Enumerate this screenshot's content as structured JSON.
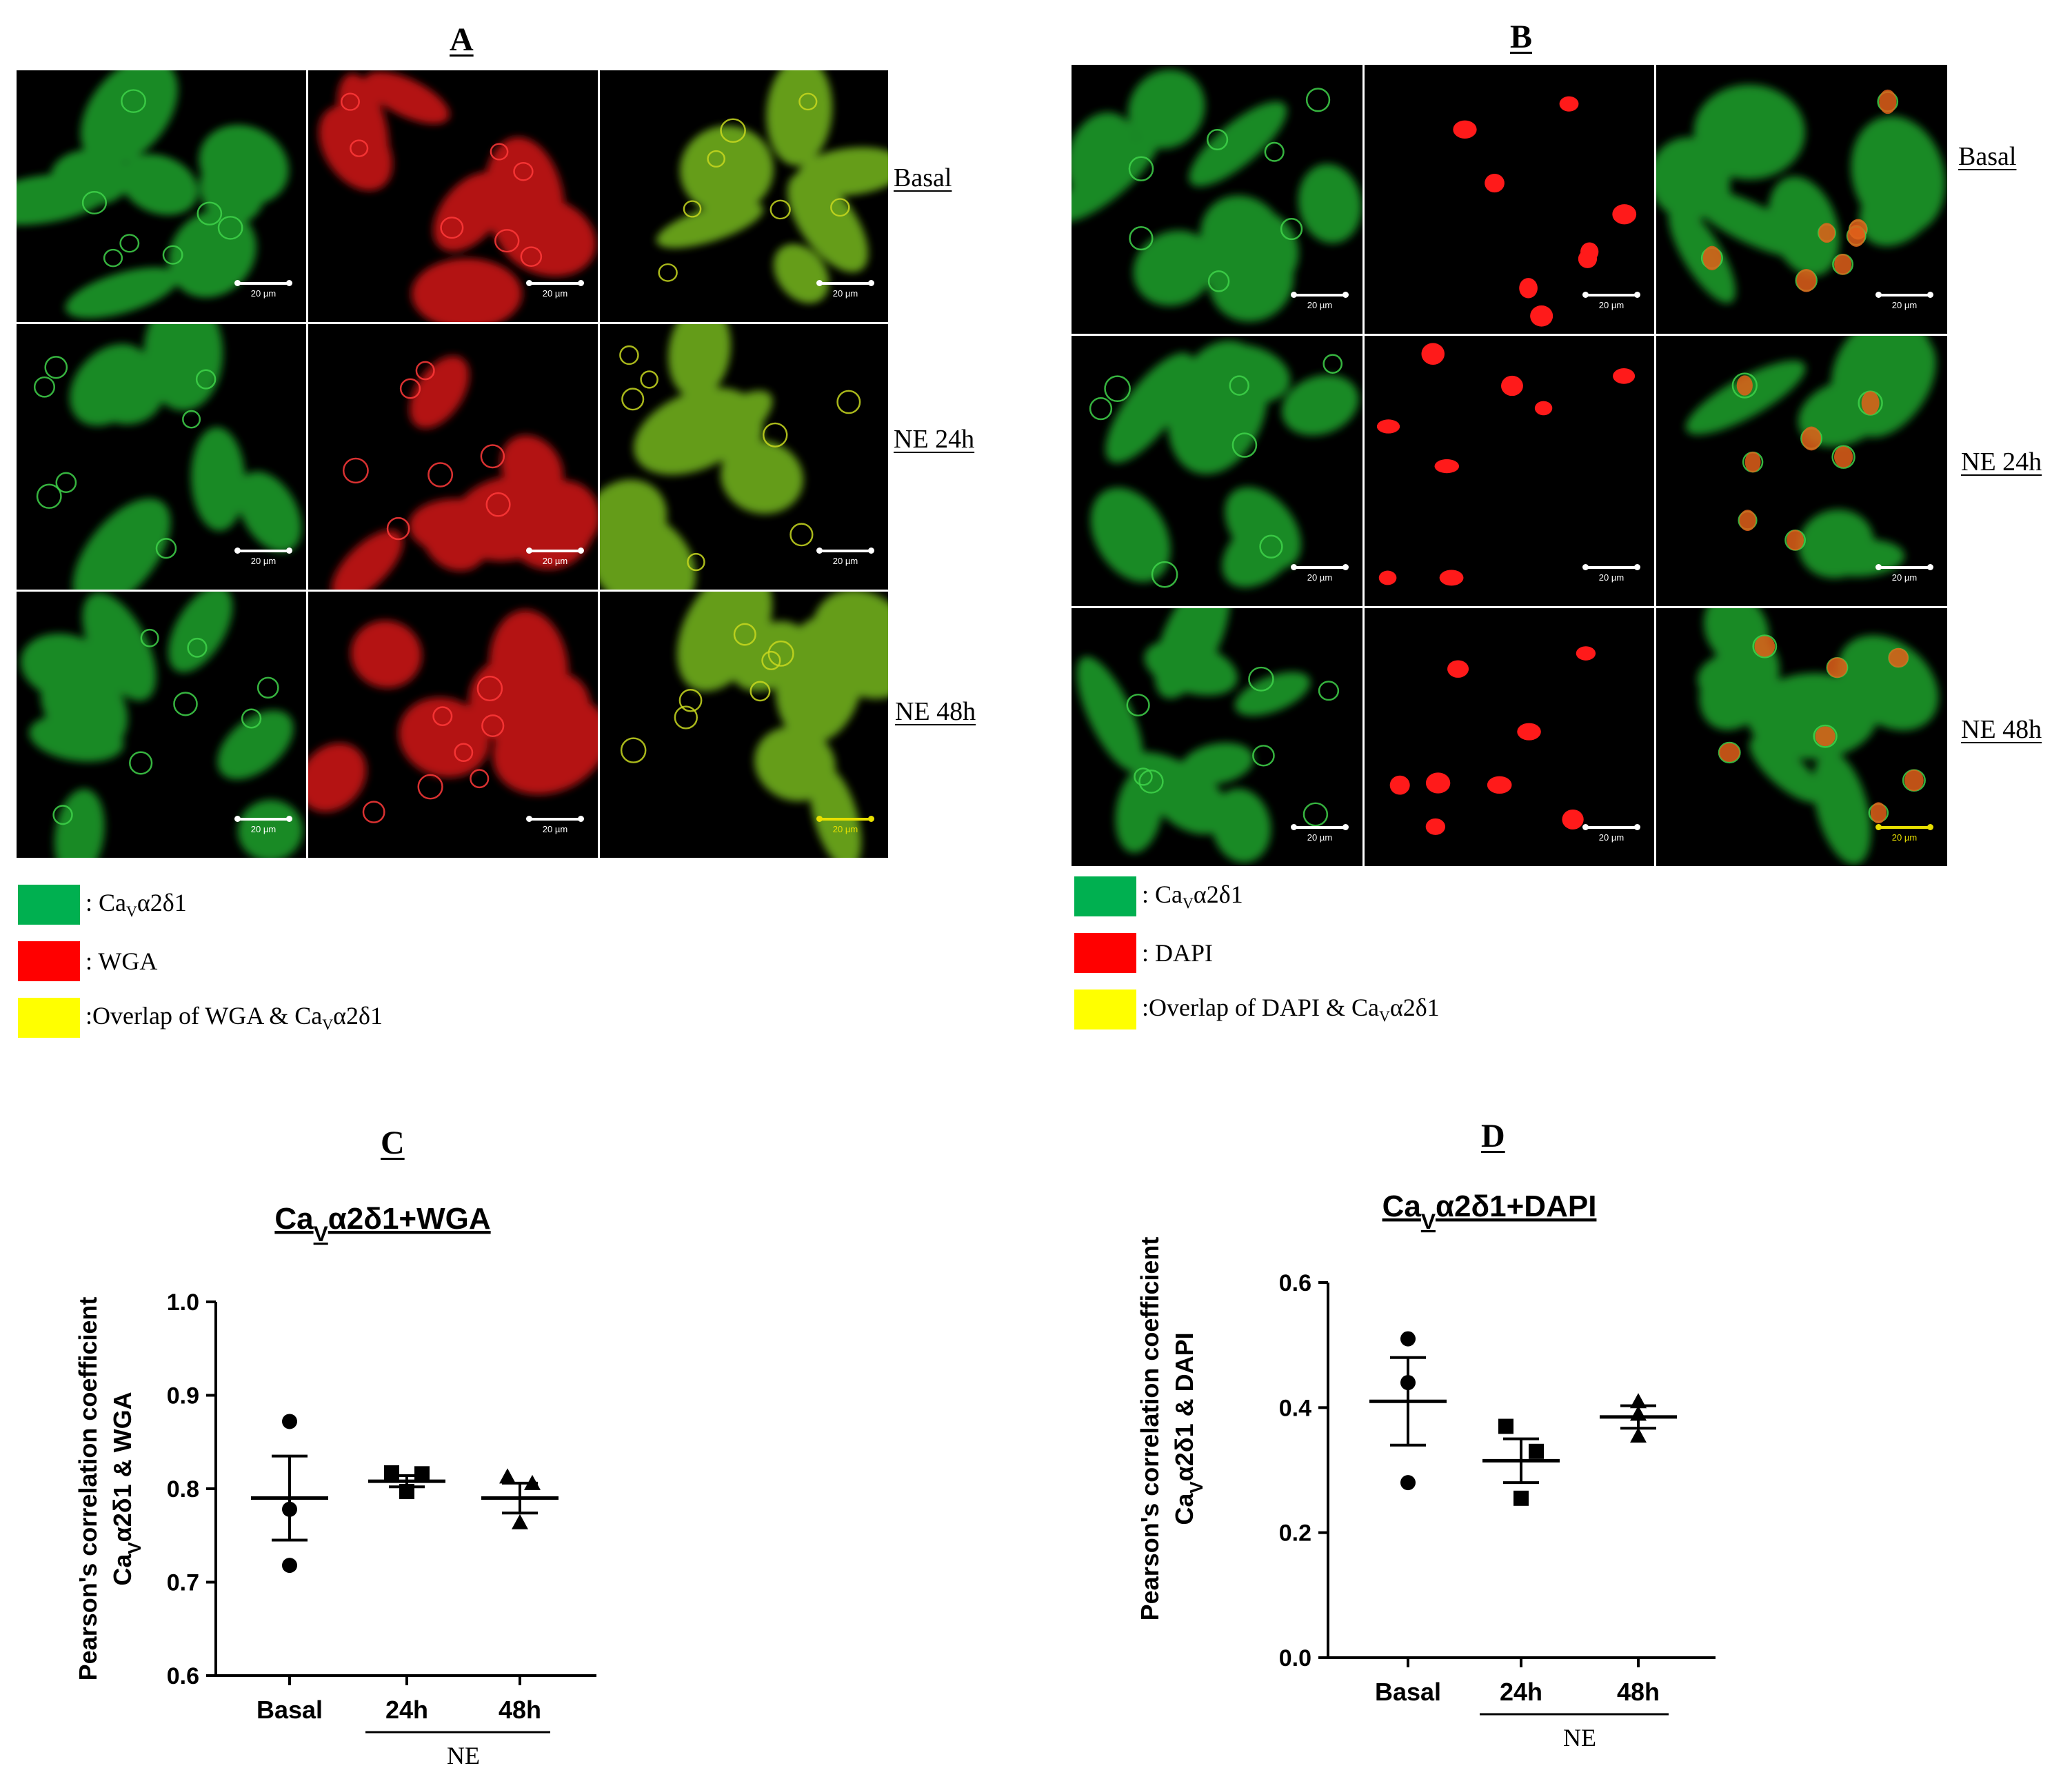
{
  "panels": {
    "A": {
      "letter": "A",
      "rows": [
        "Basal",
        "NE 24h",
        "NE 48h"
      ]
    },
    "B": {
      "letter": "B",
      "rows": [
        "Basal",
        "NE 24h",
        "NE 48h"
      ]
    },
    "C": {
      "letter": "C"
    },
    "D": {
      "letter": "D"
    }
  },
  "scale_bar_label": "20 µm",
  "legend_A": [
    {
      "color": "#00b050",
      "prefix": ": Ca",
      "sub": "V",
      "suffix": "α2δ1"
    },
    {
      "color": "#ff0000",
      "prefix": ": WGA",
      "sub": "",
      "suffix": ""
    },
    {
      "color": "#ffff00",
      "prefix": ":Overlap of WGA & Ca",
      "sub": "V",
      "suffix": "α2δ1"
    }
  ],
  "legend_B": [
    {
      "color": "#00b050",
      "prefix": ": Ca",
      "sub": "V",
      "suffix": "α2δ1"
    },
    {
      "color": "#ff0000",
      "prefix": ": DAPI",
      "sub": "",
      "suffix": ""
    },
    {
      "color": "#ffff00",
      "prefix": ":Overlap of DAPI & Ca",
      "sub": "V",
      "suffix": "α2δ1"
    }
  ],
  "chart_data": [
    {
      "type": "scatter",
      "title": {
        "prefix": "Ca",
        "sub": "V",
        "suffix": "α2δ1+WGA"
      },
      "ylabel_line1": "Pearson's correlation coefficient",
      "ylabel_line2": {
        "prefix": "Ca",
        "sub": "V",
        "suffix": "α2δ1 & WGA"
      },
      "categories": [
        "Basal",
        "24h",
        "48h"
      ],
      "group_label": "NE",
      "ylim": [
        0.6,
        1.0
      ],
      "yticks": [
        "0.6",
        "0.7",
        "0.8",
        "0.9",
        "1.0"
      ],
      "series": [
        {
          "category": "Basal",
          "marker": "circle",
          "values": [
            0.872,
            0.778,
            0.718
          ],
          "mean": 0.79,
          "sem": 0.045
        },
        {
          "category": "24h",
          "marker": "square",
          "values": [
            0.817,
            0.816,
            0.797
          ],
          "mean": 0.808,
          "sem": 0.006
        },
        {
          "category": "48h",
          "marker": "triangle",
          "values": [
            0.813,
            0.806,
            0.764
          ],
          "mean": 0.79,
          "sem": 0.016
        }
      ]
    },
    {
      "type": "scatter",
      "title": {
        "prefix": "Ca",
        "sub": "V",
        "suffix": "α2δ1+DAPI"
      },
      "ylabel_line1": "Pearson's correlation coefficient",
      "ylabel_line2": {
        "prefix": "Ca",
        "sub": "V",
        "suffix": "α2δ1 & DAPI"
      },
      "categories": [
        "Basal",
        "24h",
        "48h"
      ],
      "group_label": "NE",
      "ylim": [
        0.0,
        0.6
      ],
      "yticks": [
        "0.0",
        "0.2",
        "0.4",
        "0.6"
      ],
      "series": [
        {
          "category": "Basal",
          "marker": "circle",
          "values": [
            0.51,
            0.44,
            0.28
          ],
          "mean": 0.41,
          "sem": 0.07
        },
        {
          "category": "24h",
          "marker": "square",
          "values": [
            0.37,
            0.33,
            0.255
          ],
          "mean": 0.315,
          "sem": 0.035
        },
        {
          "category": "48h",
          "marker": "triangle",
          "values": [
            0.41,
            0.39,
            0.355
          ],
          "mean": 0.385,
          "sem": 0.018
        }
      ]
    }
  ]
}
